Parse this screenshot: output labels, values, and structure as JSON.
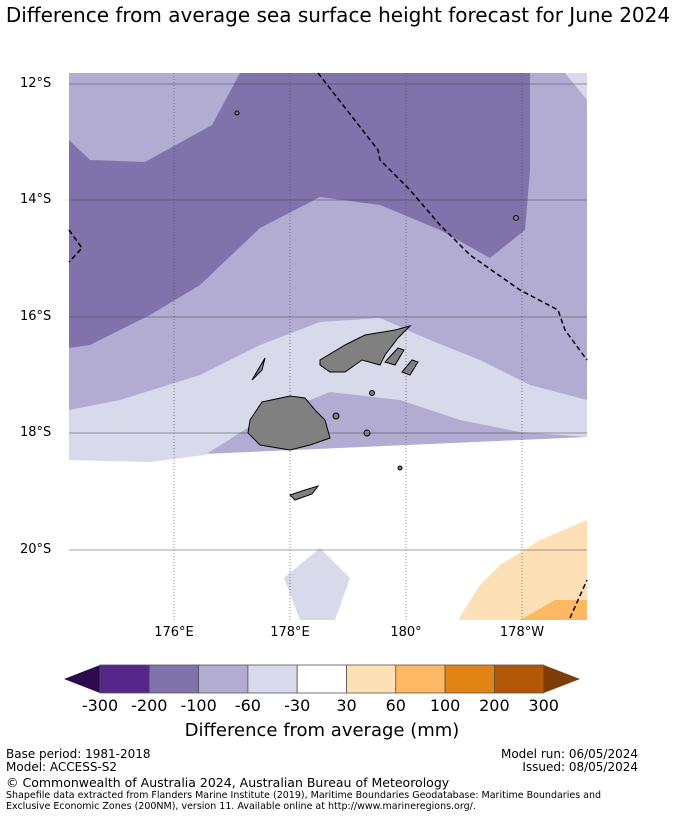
{
  "title": "Difference from average sea surface height forecast for June 2024",
  "lat_labels": [
    "12°S",
    "14°S",
    "16°S",
    "18°S",
    "20°S"
  ],
  "lon_labels": [
    "176°E",
    "178°E",
    "180°",
    "178°W"
  ],
  "colorbar": {
    "ticks": [
      "-300",
      "-200",
      "-100",
      "-60",
      "-30",
      "30",
      "60",
      "100",
      "200",
      "300"
    ],
    "colors": [
      "#2d0a4e",
      "#542788",
      "#8073ac",
      "#b2abd2",
      "#d8daeb",
      "#ffffff",
      "#fee0b6",
      "#fdb863",
      "#e08214",
      "#b35806",
      "#7f3b08"
    ],
    "label": "Difference from average (mm)"
  },
  "footer": {
    "base_period": "Base period: 1981-2018",
    "model": "Model: ACCESS-S2",
    "model_run": "Model run: 06/05/2024",
    "issued": "Issued: 08/05/2024",
    "copyright": "© Commonwealth of Australia 2024, Australian Bureau of Meteorology",
    "shapefile": "Shapefile data extracted from Flanders Marine Institute (2019), Maritime Boundaries Geodatabase: Maritime Boundaries and Exclusive Economic Zones (200NM), version 11. Available online at http://www.marineregions.org/."
  }
}
